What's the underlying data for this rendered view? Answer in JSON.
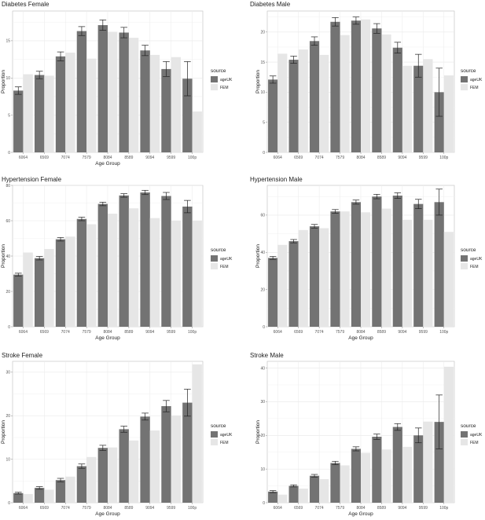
{
  "legend": {
    "title": "source",
    "items": [
      {
        "label": "ageUK",
        "color": "#737373"
      },
      {
        "label": "FEM",
        "color": "#e6e6e6"
      }
    ]
  },
  "chart_data": [
    {
      "type": "bar",
      "title": "Diabetes Female",
      "xlabel": "Age Group",
      "ylabel": "Proportion",
      "categories": [
        "6064",
        "6569",
        "7074",
        "7579",
        "8084",
        "8589",
        "9094",
        "9599",
        "100p"
      ],
      "ylim": [
        0,
        19
      ],
      "yticks": [
        0,
        5,
        10,
        15
      ],
      "series": [
        {
          "name": "ageUK",
          "values": [
            8.3,
            10.4,
            12.9,
            16.3,
            17.1,
            16.1,
            13.7,
            11.2,
            9.9
          ],
          "err": [
            0.5,
            0.5,
            0.6,
            0.6,
            0.7,
            0.7,
            0.7,
            1.0,
            2.3
          ]
        },
        {
          "name": "FEM",
          "values": [
            10.5,
            10.3,
            13.4,
            12.6,
            16.2,
            15.4,
            13.1,
            12.8,
            5.5
          ]
        }
      ],
      "grid": true,
      "legend_position": "right"
    },
    {
      "type": "bar",
      "title": "Diabetes Male",
      "xlabel": "",
      "ylabel": "Proportion",
      "categories": [
        "6064",
        "6569",
        "7074",
        "7579",
        "8084",
        "8589",
        "9094",
        "9599",
        "100p"
      ],
      "ylim": [
        0,
        23.5
      ],
      "yticks": [
        0,
        5,
        10,
        15,
        20
      ],
      "series": [
        {
          "name": "ageUK",
          "values": [
            12.1,
            15.4,
            18.5,
            21.7,
            21.9,
            20.6,
            17.4,
            14.4,
            10.0
          ],
          "err": [
            0.6,
            0.6,
            0.7,
            0.7,
            0.6,
            0.8,
            0.9,
            1.9,
            4.0
          ]
        },
        {
          "name": "FEM",
          "values": [
            16.4,
            17.1,
            16.2,
            19.5,
            22.1,
            19.6,
            14.4,
            15.5,
            12.8
          ]
        }
      ],
      "grid": true,
      "legend_position": "right"
    },
    {
      "type": "bar",
      "title": "Hypertension Female",
      "xlabel": "Age Group",
      "ylabel": "Proportion",
      "categories": [
        "6064",
        "6569",
        "7074",
        "7579",
        "8084",
        "8589",
        "9094",
        "9599",
        "100p"
      ],
      "ylim": [
        0,
        80
      ],
      "yticks": [
        0,
        20,
        40,
        60,
        80
      ],
      "series": [
        {
          "name": "ageUK",
          "values": [
            29.5,
            38.8,
            49.5,
            61.0,
            69.5,
            74.3,
            76.0,
            74.0,
            68.0
          ],
          "err": [
            0.8,
            1.0,
            1.0,
            1.0,
            1.0,
            1.0,
            1.2,
            2.0,
            3.5
          ]
        },
        {
          "name": "FEM",
          "values": [
            42.0,
            44.0,
            51.0,
            58.0,
            64.0,
            67.0,
            61.5,
            60.0,
            60.0
          ]
        }
      ],
      "grid": true,
      "legend_position": "right"
    },
    {
      "type": "bar",
      "title": "Hypertension Male",
      "xlabel": "Age Group",
      "ylabel": "Proportion",
      "categories": [
        "6064",
        "6569",
        "7074",
        "7579",
        "8084",
        "8589",
        "9094",
        "9599",
        "100p"
      ],
      "ylim": [
        0,
        76
      ],
      "yticks": [
        0,
        20,
        40,
        60
      ],
      "series": [
        {
          "name": "ageUK",
          "values": [
            37.0,
            46.0,
            54.0,
            62.0,
            67.0,
            70.0,
            70.5,
            66.0,
            67.0
          ],
          "err": [
            0.8,
            0.9,
            1.0,
            1.0,
            1.1,
            1.2,
            1.5,
            2.5,
            7.0
          ]
        },
        {
          "name": "FEM",
          "values": [
            44.0,
            52.0,
            53.0,
            62.0,
            61.5,
            63.5,
            57.5,
            57.5,
            51.0
          ]
        }
      ],
      "grid": true,
      "legend_position": "right"
    },
    {
      "type": "bar",
      "title": "Stroke Female",
      "xlabel": "Age Group",
      "ylabel": "Proportion",
      "categories": [
        "6064",
        "6569",
        "7074",
        "7579",
        "8084",
        "8589",
        "9094",
        "9599",
        "100p"
      ],
      "ylim": [
        0,
        32.5
      ],
      "yticks": [
        0,
        10,
        20,
        30
      ],
      "series": [
        {
          "name": "ageUK",
          "values": [
            2.2,
            3.4,
            5.2,
            8.4,
            12.6,
            16.9,
            19.8,
            22.2,
            23.0
          ],
          "err": [
            0.2,
            0.3,
            0.4,
            0.5,
            0.6,
            0.7,
            0.8,
            1.3,
            3.1
          ]
        },
        {
          "name": "FEM",
          "values": [
            2.0,
            3.0,
            6.0,
            10.5,
            12.7,
            14.3,
            16.6,
            20.0,
            31.8
          ]
        }
      ],
      "grid": true,
      "legend_position": "right"
    },
    {
      "type": "bar",
      "title": "Stroke Male",
      "xlabel": "Age Group",
      "ylabel": "Proportion",
      "categories": [
        "6064",
        "6569",
        "7074",
        "7579",
        "8084",
        "8589",
        "9094",
        "9599",
        "100p"
      ],
      "ylim": [
        0,
        42
      ],
      "yticks": [
        0,
        10,
        20,
        30,
        40
      ],
      "series": [
        {
          "name": "ageUK",
          "values": [
            3.3,
            5.0,
            8.0,
            11.8,
            16.0,
            19.6,
            22.5,
            20.0,
            24.0
          ],
          "err": [
            0.3,
            0.3,
            0.4,
            0.5,
            0.6,
            0.8,
            1.0,
            2.2,
            8.0
          ]
        },
        {
          "name": "FEM",
          "values": [
            2.4,
            4.2,
            7.0,
            11.1,
            14.8,
            15.8,
            16.6,
            24.1,
            40.4
          ]
        }
      ],
      "grid": true,
      "legend_position": "right"
    }
  ]
}
